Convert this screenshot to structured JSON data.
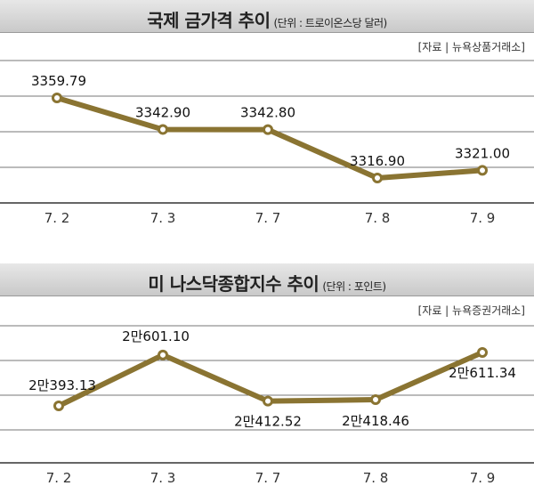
{
  "chart_data": [
    {
      "type": "line",
      "title": "국제 금가격 추이",
      "unit": "(단위 : 트로이온스당 달러)",
      "source": "[자료 | 뉴욕상품거래소]",
      "categories": [
        "7. 2",
        "7. 3",
        "7. 7",
        "7. 8",
        "7. 9"
      ],
      "values": [
        3359.79,
        3342.9,
        3342.8,
        3316.9,
        3321.0
      ],
      "labels": [
        "3359.79",
        "3342.90",
        "3342.80",
        "3316.90",
        "3321.00"
      ],
      "ylim": [
        3305,
        3375
      ],
      "grid": true,
      "color": "#8a7432"
    },
    {
      "type": "line",
      "title": "미 나스닥종합지수 추이",
      "unit": "(단위 : 포인트)",
      "source": "[자료 | 뉴욕증권거래소]",
      "categories": [
        "7. 2",
        "7. 3",
        "7. 7",
        "7. 8",
        "7. 9"
      ],
      "values": [
        20393.13,
        20601.1,
        20412.52,
        20418.46,
        20611.34
      ],
      "labels": [
        "2만393.13",
        "2만601.10",
        "2만412.52",
        "2만418.46",
        "2만611.34"
      ],
      "ylim": [
        20340,
        20670
      ],
      "grid": true,
      "color": "#8a7432"
    }
  ]
}
